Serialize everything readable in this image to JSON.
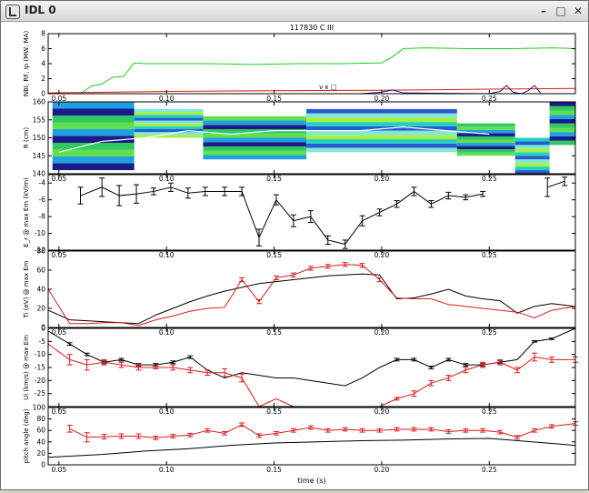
{
  "window": {
    "title": "IDL 0",
    "minimize_glyph": "–",
    "maximize_glyph": "□",
    "close_glyph": "✕"
  },
  "colors": {
    "black": "#000000",
    "red": "#dd1a1a",
    "green": "#16d016",
    "navy": "#1a1a88",
    "gray": "#777777",
    "white": "#ffffff"
  },
  "chart_data": [
    {
      "type": "line",
      "title": "117830 C III",
      "ylabel": "NBI, RF, Ip (MW, MA)",
      "xlim": [
        0.045,
        0.29
      ],
      "ylim": [
        0,
        8
      ],
      "x_ticks": [
        0.05,
        0.1,
        0.15,
        0.2,
        0.25
      ],
      "x_tick_labels": [
        "0.05",
        "0.10",
        "0.15",
        "0.20",
        "0.25"
      ],
      "y_ticks": [
        0,
        2,
        4,
        6,
        8
      ],
      "y_tick_labels": [
        "0",
        "2",
        "4",
        "6",
        "8"
      ],
      "annotation": "v x □",
      "series": [
        {
          "color": "green",
          "x": [
            0.06,
            0.065,
            0.07,
            0.075,
            0.08,
            0.085,
            0.09,
            0.1,
            0.12,
            0.14,
            0.16,
            0.18,
            0.2,
            0.205,
            0.21,
            0.22,
            0.24,
            0.26,
            0.28,
            0.29
          ],
          "y": [
            0,
            1.0,
            1.3,
            2.2,
            2.3,
            4.1,
            4.0,
            4.0,
            4.0,
            3.9,
            4.0,
            4.0,
            4.1,
            4.9,
            6.0,
            6.1,
            6.0,
            6.0,
            6.1,
            6.0
          ]
        },
        {
          "color": "red",
          "x": [
            0.045,
            0.1,
            0.15,
            0.2,
            0.25,
            0.29
          ],
          "y": [
            0.1,
            0.3,
            0.4,
            0.45,
            0.6,
            0.7
          ]
        },
        {
          "color": "navy",
          "x": [
            0.045,
            0.1,
            0.15,
            0.19,
            0.2,
            0.205,
            0.21,
            0.25,
            0.255,
            0.258,
            0.261,
            0.265,
            0.268,
            0.271,
            0.274,
            0.29
          ],
          "y": [
            0,
            0,
            0,
            0,
            0.2,
            0.5,
            0.1,
            0,
            0.3,
            1.1,
            0.2,
            0,
            0.4,
            1.1,
            0,
            0
          ]
        }
      ]
    },
    {
      "type": "heatmap",
      "ylabel": "R (cm)",
      "xlim": [
        0.045,
        0.29
      ],
      "ylim": [
        140,
        160
      ],
      "x_ticks": [
        0.05,
        0.1,
        0.15,
        0.2,
        0.25
      ],
      "x_tick_labels": [
        "0.05",
        "0.10",
        "0.15",
        "0.20",
        "0.25"
      ],
      "y_ticks": [
        140,
        145,
        150,
        155,
        160
      ],
      "y_tick_labels": [
        "140",
        "145",
        "150",
        "155",
        "160"
      ],
      "white_curve": {
        "x": [
          0.05,
          0.07,
          0.09,
          0.11,
          0.13,
          0.15,
          0.17,
          0.19,
          0.21,
          0.23,
          0.25
        ],
        "y": [
          146,
          149,
          150,
          152,
          151,
          152,
          152,
          152,
          153,
          152,
          151
        ]
      }
    },
    {
      "type": "line",
      "ylabel": "E_r @ max Em (kV/m)",
      "xlim": [
        0.045,
        0.29
      ],
      "ylim": [
        -12,
        -3
      ],
      "x_ticks": [
        0.05,
        0.1,
        0.15,
        0.2,
        0.25
      ],
      "x_tick_labels": [
        "0.05",
        "0.10",
        "0.15",
        "0.20",
        "0.25"
      ],
      "y_ticks": [
        -12,
        -10,
        -8,
        -6,
        -4
      ],
      "y_tick_labels": [
        "-12",
        "-10",
        "-8",
        "-6",
        "-4"
      ],
      "series": [
        {
          "color": "black",
          "x": [
            0.06,
            0.07,
            0.078,
            0.086,
            0.094,
            0.102,
            0.11,
            0.118,
            0.127,
            0.135,
            0.143,
            0.151,
            0.159,
            0.167,
            0.175,
            0.183,
            0.191,
            0.199,
            0.207,
            0.215,
            0.223,
            0.231,
            0.239,
            0.247,
            0.255
          ],
          "y": [
            -5.5,
            -4.5,
            -5.5,
            -5.3,
            -5.0,
            -4.5,
            -5.2,
            -5.0,
            -5.0,
            -5.0,
            -10.5,
            -6.0,
            -8.5,
            -8.0,
            -10.8,
            -11.3,
            -8.5,
            -7.5,
            -6.5,
            -5.0,
            -6.5,
            -5.5,
            -5.7,
            -5.3,
            null
          ],
          "err": [
            1.0,
            1.1,
            1.2,
            1.1,
            0.4,
            0.5,
            0.6,
            0.5,
            0.5,
            0.5,
            1.0,
            0.6,
            0.7,
            0.7,
            0.5,
            0.5,
            0.6,
            0.4,
            0.4,
            0.5,
            0.4,
            0.4,
            0.3,
            0.3,
            0
          ]
        },
        {
          "color": "black",
          "x": [
            0.277,
            0.285
          ],
          "y": [
            -4.5,
            -3.8
          ],
          "err": [
            1.1,
            0.5
          ]
        }
      ]
    },
    {
      "type": "line",
      "ylabel": "Ti (eV) @ max Em",
      "xlim": [
        0.045,
        0.29
      ],
      "ylim": [
        0,
        80
      ],
      "x_ticks": [
        0.05,
        0.1,
        0.15,
        0.2,
        0.25
      ],
      "x_tick_labels": [
        "0.05",
        "0.10",
        "0.15",
        "0.20",
        "0.25"
      ],
      "y_ticks": [
        0,
        20,
        40,
        60,
        80
      ],
      "y_tick_labels": [
        "0",
        "20",
        "40",
        "60",
        "80"
      ],
      "series": [
        {
          "color": "black",
          "x": [
            0.045,
            0.055,
            0.063,
            0.071,
            0.079,
            0.087,
            0.095,
            0.103,
            0.111,
            0.119,
            0.127,
            0.135,
            0.143,
            0.151,
            0.159,
            0.167,
            0.175,
            0.183,
            0.191,
            0.199,
            0.207,
            0.215,
            0.223,
            0.231,
            0.239,
            0.247,
            0.255,
            0.263,
            0.271,
            0.279,
            0.29
          ],
          "y": [
            18,
            8,
            7,
            6,
            5,
            4,
            13,
            20,
            27,
            33,
            38,
            42,
            46,
            48,
            50,
            52,
            54,
            55,
            56,
            55,
            30,
            31,
            35,
            40,
            33,
            30,
            28,
            15,
            22,
            25,
            22
          ],
          "err": [
            0,
            0,
            0,
            0,
            0,
            0,
            0,
            0,
            0,
            0,
            0,
            0,
            0,
            0,
            0,
            0,
            0,
            0,
            0,
            0,
            0,
            0,
            0,
            0,
            0,
            0,
            0,
            0,
            0,
            0,
            0
          ]
        },
        {
          "color": "red",
          "x": [
            0.045,
            0.055,
            0.063,
            0.071,
            0.079,
            0.087,
            0.095,
            0.103,
            0.111,
            0.119,
            0.127,
            0.135,
            0.143,
            0.151,
            0.159,
            0.167,
            0.175,
            0.183,
            0.191,
            0.199,
            0.207,
            0.215,
            0.223,
            0.231,
            0.239,
            0.247,
            0.255,
            0.263,
            0.271,
            0.279,
            0.29
          ],
          "y": [
            40,
            4,
            4,
            5,
            5,
            2,
            8,
            12,
            17,
            20,
            21,
            50,
            27,
            52,
            55,
            62,
            64,
            66,
            65,
            50,
            31,
            30,
            30,
            24,
            22,
            20,
            18,
            16,
            10,
            18,
            22
          ],
          "err": [
            0,
            0,
            0,
            0,
            0,
            0,
            0,
            0,
            0,
            0,
            0,
            2,
            2,
            2,
            2,
            2,
            2,
            2,
            2,
            2,
            0,
            0,
            0,
            0,
            0,
            0,
            0,
            0,
            0,
            0,
            0
          ]
        }
      ]
    },
    {
      "type": "line",
      "ylabel": "Ui (km/s) @ max Em",
      "xlim": [
        0.045,
        0.29
      ],
      "ylim": [
        -30,
        0
      ],
      "x_ticks": [
        0.05,
        0.1,
        0.15,
        0.2,
        0.25
      ],
      "x_tick_labels": [
        "0.05",
        "0.10",
        "0.15",
        "0.20",
        "0.25"
      ],
      "y_ticks": [
        -25,
        -20,
        -15,
        -10,
        -5,
        0
      ],
      "y_tick_labels": [
        "-25",
        "-20",
        "-15",
        "-10",
        "-5",
        "0"
      ],
      "series": [
        {
          "color": "black",
          "x": [
            0.045,
            0.055,
            0.063,
            0.071,
            0.079,
            0.087,
            0.095,
            0.103,
            0.111,
            0.119,
            0.127,
            0.135,
            0.143,
            0.151,
            0.159,
            0.167,
            0.175,
            0.183,
            0.191,
            0.199,
            0.207,
            0.215,
            0.223,
            0.231,
            0.239,
            0.247,
            0.255,
            0.263,
            0.271,
            0.279,
            0.29
          ],
          "y": [
            -1,
            -6,
            -10,
            -13,
            -12,
            -14,
            -14,
            -13,
            -11,
            -16,
            -19,
            -17,
            -18,
            -19,
            -19,
            -20,
            -21,
            -22,
            -19,
            -15,
            -12,
            -12,
            -15,
            -12,
            -14,
            -14,
            -13,
            -12,
            -5,
            -4,
            0
          ],
          "err": [
            0,
            0.5,
            0.5,
            0.5,
            0.5,
            0.5,
            0.5,
            0.5,
            0.5,
            0,
            0,
            0,
            0,
            0,
            0,
            0,
            0,
            0,
            0,
            0,
            0.5,
            0.5,
            0.5,
            0.5,
            0.5,
            0.5,
            0.5,
            0,
            0.3,
            0.3,
            0
          ]
        },
        {
          "color": "red",
          "x": [
            0.045,
            0.055,
            0.063,
            0.071,
            0.079,
            0.087,
            0.095,
            0.103,
            0.111,
            0.119,
            0.127,
            0.135,
            0.143,
            0.151,
            0.159,
            0.167,
            0.175,
            0.183,
            0.191,
            0.199,
            0.207,
            0.215,
            0.223,
            0.231,
            0.239,
            0.247,
            0.255,
            0.263,
            0.271,
            0.279,
            0.29
          ],
          "y": [
            -6,
            -12,
            -14,
            -13,
            -14,
            -15,
            -15,
            -15,
            -16,
            -17,
            -17,
            -19,
            -30,
            -27,
            -30,
            -30,
            -30,
            -30,
            -30,
            -30,
            -27,
            -25,
            -21,
            -19,
            -16,
            -14,
            -13,
            -16,
            -11,
            -12,
            -12
          ],
          "err": [
            0,
            2,
            2,
            1,
            1,
            1,
            0.5,
            1,
            1,
            1,
            1.5,
            1.5,
            0,
            0,
            0,
            0,
            0,
            0,
            0,
            0,
            0.5,
            1,
            1,
            1,
            1,
            1,
            1,
            1,
            1.5,
            1,
            1
          ]
        }
      ]
    },
    {
      "type": "line",
      "ylabel": "pitch angle (deg)",
      "xlabel": "time (s)",
      "xlim": [
        0.045,
        0.29
      ],
      "ylim": [
        0,
        100
      ],
      "x_ticks": [
        0.05,
        0.1,
        0.15,
        0.2,
        0.25
      ],
      "x_tick_labels": [
        "0.05",
        "0.10",
        "0.15",
        "0.20",
        "0.25"
      ],
      "y_ticks": [
        0,
        20,
        40,
        60,
        80,
        100
      ],
      "y_tick_labels": [
        "0",
        "20",
        "40",
        "60",
        "80",
        "100"
      ],
      "series": [
        {
          "color": "black",
          "x": [
            0.045,
            0.07,
            0.09,
            0.11,
            0.13,
            0.15,
            0.17,
            0.19,
            0.21,
            0.23,
            0.25,
            0.27,
            0.29
          ],
          "y": [
            13,
            18,
            24,
            28,
            34,
            38,
            40,
            42,
            43,
            45,
            46,
            40,
            34
          ],
          "err": [
            0,
            0,
            0,
            0,
            0,
            0,
            0,
            0,
            0,
            0,
            0,
            0,
            0
          ]
        },
        {
          "color": "red",
          "x": [
            0.055,
            0.063,
            0.071,
            0.079,
            0.087,
            0.095,
            0.103,
            0.111,
            0.119,
            0.127,
            0.135,
            0.143,
            0.151,
            0.159,
            0.167,
            0.175,
            0.183,
            0.191,
            0.199,
            0.207,
            0.215,
            0.223,
            0.231,
            0.239,
            0.247,
            0.255,
            0.263,
            0.271,
            0.279,
            0.29
          ],
          "y": [
            63,
            48,
            49,
            50,
            50,
            47,
            50,
            52,
            60,
            55,
            70,
            51,
            55,
            60,
            65,
            60,
            62,
            60,
            60,
            62,
            62,
            62,
            58,
            60,
            60,
            57,
            48,
            60,
            67,
            72
          ],
          "err": [
            6,
            8,
            4,
            4,
            4,
            3,
            3,
            3,
            3,
            3,
            3,
            3,
            3,
            3,
            3,
            3,
            3,
            3,
            3,
            3,
            3,
            3,
            3,
            3,
            3,
            3,
            3,
            3,
            3,
            3
          ]
        }
      ]
    }
  ]
}
